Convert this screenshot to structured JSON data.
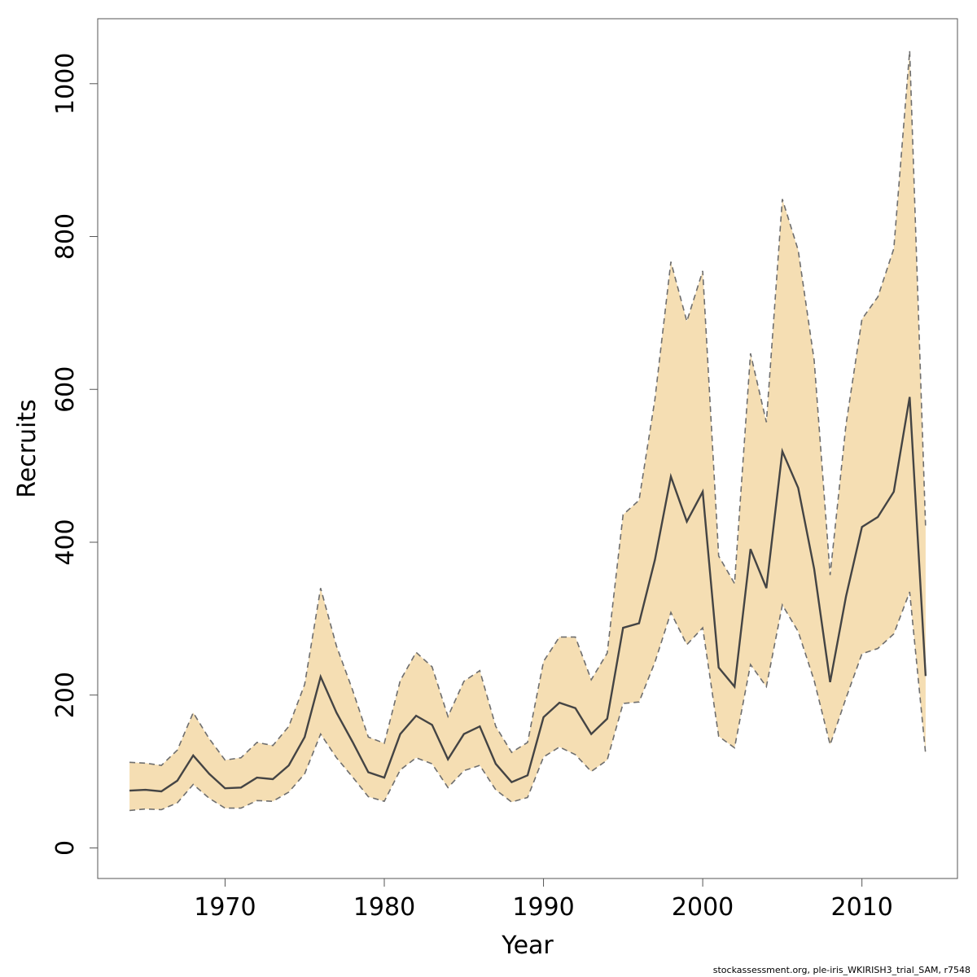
{
  "chart_data": {
    "type": "area",
    "xlabel": "Year",
    "ylabel": "Recruits",
    "xlim": [
      1962,
      2016
    ],
    "ylim": [
      -40,
      1085
    ],
    "x_ticks": [
      1970,
      1980,
      1990,
      2000,
      2010
    ],
    "x_tick_labels": [
      "1970",
      "1980",
      "1990",
      "2000",
      "2010"
    ],
    "y_ticks": [
      0,
      200,
      400,
      600,
      800,
      1000
    ],
    "y_tick_labels": [
      "0",
      "200",
      "400",
      "600",
      "800",
      "1000"
    ],
    "grid": false,
    "colors": {
      "band": "#f5deb3",
      "line": "#444444",
      "bound": "#6e6e6e"
    },
    "x": [
      1964,
      1965,
      1966,
      1967,
      1968,
      1969,
      1970,
      1971,
      1972,
      1973,
      1974,
      1975,
      1976,
      1977,
      1978,
      1979,
      1980,
      1981,
      1982,
      1983,
      1984,
      1985,
      1986,
      1987,
      1988,
      1989,
      1990,
      1991,
      1992,
      1993,
      1994,
      1995,
      1996,
      1997,
      1998,
      1999,
      2000,
      2001,
      2002,
      2003,
      2004,
      2005,
      2006,
      2007,
      2008,
      2009,
      2010,
      2011,
      2012,
      2013,
      2014
    ],
    "series": [
      {
        "role": "estimate",
        "values": [
          75,
          76,
          74,
          88,
          121,
          97,
          78,
          79,
          92,
          90,
          108,
          145,
          224,
          177,
          139,
          99,
          92,
          149,
          173,
          161,
          116,
          149,
          159,
          110,
          86,
          95,
          171,
          190,
          183,
          149,
          169,
          288,
          294,
          377,
          486,
          427,
          466,
          236,
          211,
          391,
          340,
          519,
          471,
          365,
          217,
          329,
          420,
          433,
          466,
          590,
          225
        ]
      },
      {
        "role": "upper",
        "values": [
          112,
          111,
          108,
          128,
          177,
          143,
          115,
          118,
          138,
          134,
          159,
          214,
          340,
          264,
          207,
          145,
          137,
          219,
          256,
          237,
          172,
          218,
          232,
          159,
          125,
          138,
          244,
          276,
          276,
          220,
          255,
          436,
          455,
          587,
          767,
          689,
          755,
          382,
          346,
          647,
          557,
          849,
          782,
          638,
          357,
          554,
          692,
          721,
          784,
          1043,
          418
        ]
      },
      {
        "role": "lower",
        "values": [
          49,
          51,
          50,
          59,
          83,
          65,
          52,
          52,
          62,
          61,
          73,
          97,
          149,
          118,
          93,
          67,
          61,
          102,
          118,
          110,
          79,
          101,
          108,
          76,
          60,
          66,
          119,
          132,
          122,
          100,
          115,
          189,
          191,
          243,
          308,
          266,
          288,
          146,
          131,
          240,
          211,
          318,
          283,
          219,
          135,
          196,
          254,
          261,
          280,
          335,
          123
        ]
      }
    ]
  },
  "footer": {
    "text": "stockassessment.org, ple-iris_WKIRISH3_trial_SAM, r7548"
  }
}
